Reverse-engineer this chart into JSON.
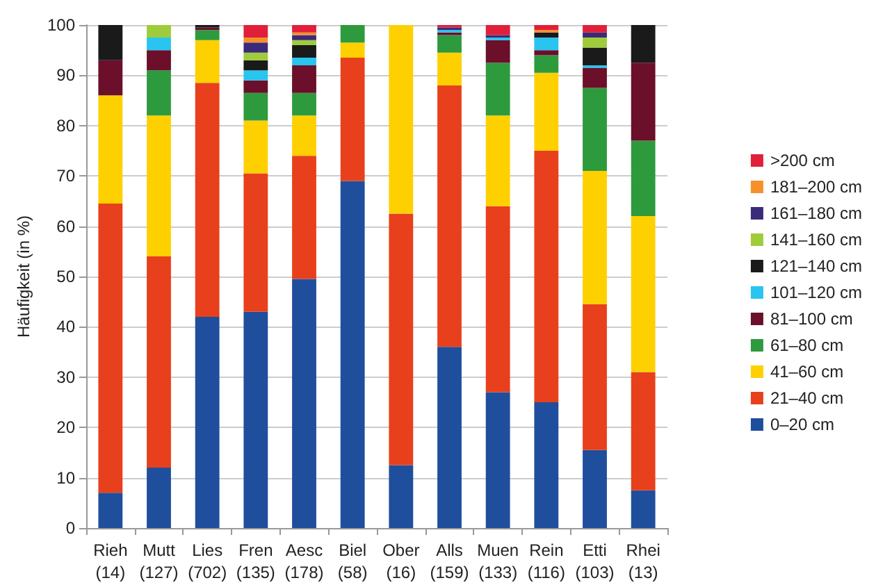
{
  "chart_data": {
    "type": "bar",
    "stacked": true,
    "ylabel": "Häufigkeit (in %)",
    "categories": [
      "Rieh\n(14)",
      "Mutt\n(127)",
      "Lies\n(702)",
      "Fren\n(135)",
      "Aesc\n(178)",
      "Biel\n(58)",
      "Ober\n(16)",
      "Alls\n(159)",
      "Muen\n(133)",
      "Rein\n(116)",
      "Etti\n(103)",
      "Rhei\n(13)"
    ],
    "series": [
      {
        "name": "0–20 cm",
        "color": "#1f4e9c",
        "values": [
          7,
          12,
          42,
          43,
          49.5,
          69,
          12.5,
          36,
          27,
          25,
          15.5,
          7.5
        ]
      },
      {
        "name": "21–40 cm",
        "color": "#e8401c",
        "values": [
          57.5,
          42,
          46.5,
          27.5,
          24.5,
          24.5,
          50,
          52,
          37,
          50,
          29,
          23.5
        ]
      },
      {
        "name": "41–60 cm",
        "color": "#ffd000",
        "values": [
          21.5,
          28,
          8.5,
          10.5,
          8,
          3,
          37.5,
          6.5,
          18,
          15.5,
          26.5,
          31
        ]
      },
      {
        "name": "61–80 cm",
        "color": "#2e9a3e",
        "values": [
          0,
          9,
          2,
          5.5,
          4.5,
          3.5,
          0,
          3.5,
          10.5,
          3.5,
          16.5,
          15
        ]
      },
      {
        "name": "81–100 cm",
        "color": "#6b0f2a",
        "values": [
          7,
          4,
          0.5,
          2.5,
          5.5,
          0,
          0,
          0.5,
          4.5,
          1,
          4,
          15.5
        ]
      },
      {
        "name": "101–120 cm",
        "color": "#29c4f0",
        "values": [
          0,
          2.5,
          0,
          2,
          1.5,
          0,
          0,
          0.5,
          0.5,
          2.5,
          0.5,
          0
        ]
      },
      {
        "name": "121–140 cm",
        "color": "#1a1a1a",
        "values": [
          7,
          0,
          0.5,
          2,
          2.5,
          0,
          0,
          0,
          0,
          1,
          3.5,
          7.5
        ]
      },
      {
        "name": "141–160 cm",
        "color": "#9fcc3b",
        "values": [
          0,
          2.5,
          0,
          1.5,
          1,
          0,
          0,
          0,
          0,
          0,
          2,
          0
        ]
      },
      {
        "name": "161–180 cm",
        "color": "#3a2a7a",
        "values": [
          0,
          0,
          0,
          2,
          1,
          0,
          0,
          0.5,
          0.5,
          0,
          1,
          0
        ]
      },
      {
        "name": "181–200 cm",
        "color": "#f7902a",
        "values": [
          0,
          0,
          0,
          1,
          0.5,
          0,
          0,
          0,
          0,
          0.5,
          0,
          0
        ]
      },
      {
        "name": ">200 cm",
        "color": "#e0203a",
        "values": [
          0,
          0,
          0,
          2.5,
          1.5,
          0,
          0,
          0.5,
          2,
          1,
          1.5,
          0
        ]
      }
    ],
    "ylim": [
      0,
      100
    ],
    "yticks": [
      0,
      10,
      20,
      30,
      40,
      50,
      60,
      70,
      80,
      90,
      100
    ],
    "grid": "y",
    "legend": "right"
  }
}
